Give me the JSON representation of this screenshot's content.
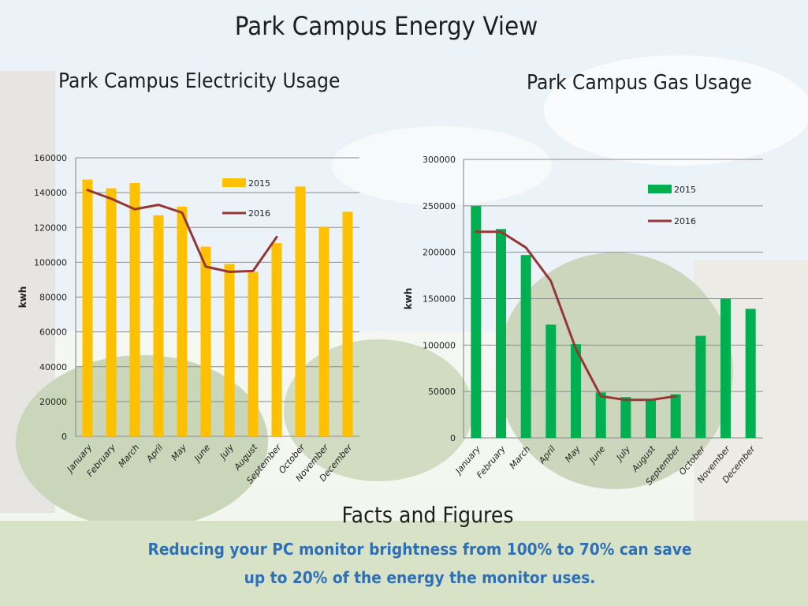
{
  "page": {
    "title": "Park Campus Energy View",
    "facts_heading": "Facts and Figures",
    "facts_lines": [
      "Reducing your PC monitor brightness from 100% to 70% can save",
      "up to 20% of the energy the monitor uses."
    ]
  },
  "colors": {
    "electricity_2015": "#ffc000",
    "gas_2015": "#00b050",
    "line_2016": "#953735",
    "grid": "#8c8c8c"
  },
  "chart_data": [
    {
      "id": "electricity",
      "type": "bar",
      "title": "Park Campus Electricity Usage",
      "ylabel": "kwh",
      "xlabel": "",
      "ylim": [
        0,
        160000
      ],
      "yticks": [
        0,
        20000,
        40000,
        60000,
        80000,
        100000,
        120000,
        140000,
        160000
      ],
      "grid": true,
      "legend": "top-right",
      "categories": [
        "January",
        "February",
        "March",
        "April",
        "May",
        "June",
        "July",
        "August",
        "September",
        "October",
        "November",
        "December"
      ],
      "series": [
        {
          "name": "2015",
          "type": "bar",
          "values": [
            147500,
            142500,
            145500,
            127000,
            132000,
            109000,
            99000,
            94500,
            111000,
            143500,
            120500,
            129000
          ]
        },
        {
          "name": "2016",
          "type": "line",
          "values": [
            141500,
            136500,
            130500,
            133000,
            128500,
            97500,
            94500,
            95000,
            114500,
            null,
            null,
            null
          ]
        }
      ]
    },
    {
      "id": "gas",
      "type": "bar",
      "title": "Park Campus Gas Usage",
      "ylabel": "kwh",
      "xlabel": "",
      "ylim": [
        0,
        300000
      ],
      "yticks": [
        0,
        50000,
        100000,
        150000,
        200000,
        250000,
        300000
      ],
      "grid": true,
      "legend": "top-right",
      "categories": [
        "January",
        "February",
        "March",
        "April",
        "May",
        "June",
        "July",
        "August",
        "September",
        "October",
        "November",
        "December"
      ],
      "series": [
        {
          "name": "2015",
          "type": "bar",
          "values": [
            250000,
            225000,
            197000,
            122000,
            101000,
            49000,
            44000,
            42000,
            47000,
            110000,
            150000,
            139000
          ]
        },
        {
          "name": "2016",
          "type": "line",
          "values": [
            222000,
            222000,
            205000,
            169000,
            96000,
            45000,
            41000,
            41000,
            45000,
            null,
            null,
            null
          ]
        }
      ]
    }
  ]
}
